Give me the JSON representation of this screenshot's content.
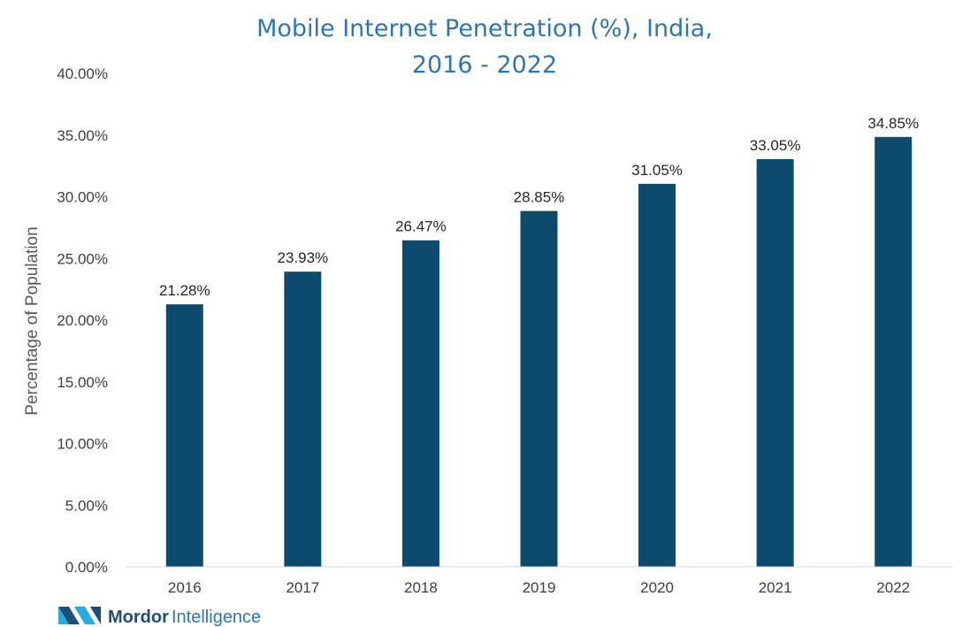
{
  "chart_data": {
    "type": "bar",
    "title_lines": [
      "Mobile Internet Penetration (%), India,",
      "2016 - 2022"
    ],
    "categories": [
      "2016",
      "2017",
      "2018",
      "2019",
      "2020",
      "2021",
      "2022"
    ],
    "values": [
      21.28,
      23.93,
      26.47,
      28.85,
      31.05,
      33.05,
      34.85
    ],
    "data_labels": [
      "21.28%",
      "23.93%",
      "26.47%",
      "28.85%",
      "31.05%",
      "33.05%",
      "34.85%"
    ],
    "xlabel": "",
    "ylabel": "Percentage of Population",
    "ylim": [
      0,
      40
    ],
    "yticks": [
      0,
      5,
      10,
      15,
      20,
      25,
      30,
      35,
      40
    ],
    "ytick_labels": [
      "0.00%",
      "5.00%",
      "10.00%",
      "15.00%",
      "20.00%",
      "25.00%",
      "30.00%",
      "35.00%",
      "40.00%"
    ],
    "grid": false,
    "legend": "none",
    "bar_color": "#0e4a6e"
  },
  "brand": {
    "name_bold": "Mordor",
    "name_light": "Intelligence",
    "logo_colors": [
      "#29abe2",
      "#1f4e79"
    ]
  }
}
